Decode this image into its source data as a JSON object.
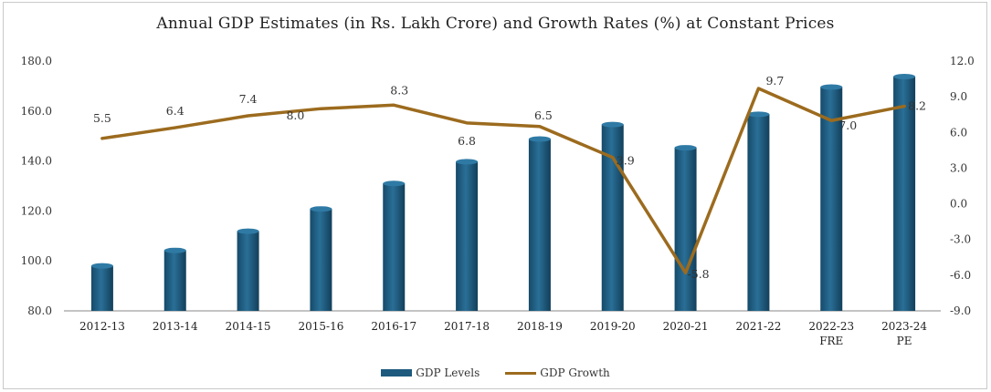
{
  "chart_data": {
    "type": "bar",
    "title": "Annual GDP Estimates (in Rs. Lakh Crore) and Growth Rates (%) at Constant Prices",
    "categories": [
      "2012-13",
      "2013-14",
      "2014-15",
      "2015-16",
      "2016-17",
      "2017-18",
      "2018-19",
      "2019-20",
      "2020-21",
      "2021-22",
      "2022-23",
      "2023-24"
    ],
    "category_sublabels": [
      "",
      "",
      "",
      "",
      "",
      "",
      "",
      "",
      "",
      "",
      "FRE",
      "PE"
    ],
    "left_axis": {
      "ylim": [
        80.0,
        180.0
      ],
      "ticks": [
        "80.0",
        "100.0",
        "120.0",
        "140.0",
        "160.0",
        "180.0"
      ]
    },
    "right_axis": {
      "ylim": [
        -9.0,
        12.0
      ],
      "ticks": [
        "-9.0",
        "-6.0",
        "-3.0",
        "0.0",
        "3.0",
        "6.0",
        "9.0",
        "12.0"
      ]
    },
    "series": [
      {
        "name": "GDP Levels",
        "kind": "bar",
        "axis": "left",
        "color": "#1d5a7e",
        "values": [
          98.0,
          104.2,
          111.9,
          120.8,
          131.0,
          139.7,
          148.8,
          154.6,
          145.3,
          158.7,
          169.6,
          183.5
        ]
      },
      {
        "name": "GDP Growth",
        "kind": "line",
        "axis": "right",
        "color": "#9c6b1e",
        "values": [
          5.5,
          6.4,
          7.4,
          8.0,
          8.3,
          6.8,
          6.5,
          3.9,
          -5.8,
          9.7,
          7.0,
          8.2
        ],
        "labels": [
          "5.5",
          "6.4",
          "7.4",
          "8.0",
          "8.3",
          "6.8",
          "6.5",
          "3.9",
          "-5.8",
          "9.7",
          "7.0",
          "8.2"
        ]
      }
    ],
    "legend": "bottom",
    "grid": false
  }
}
